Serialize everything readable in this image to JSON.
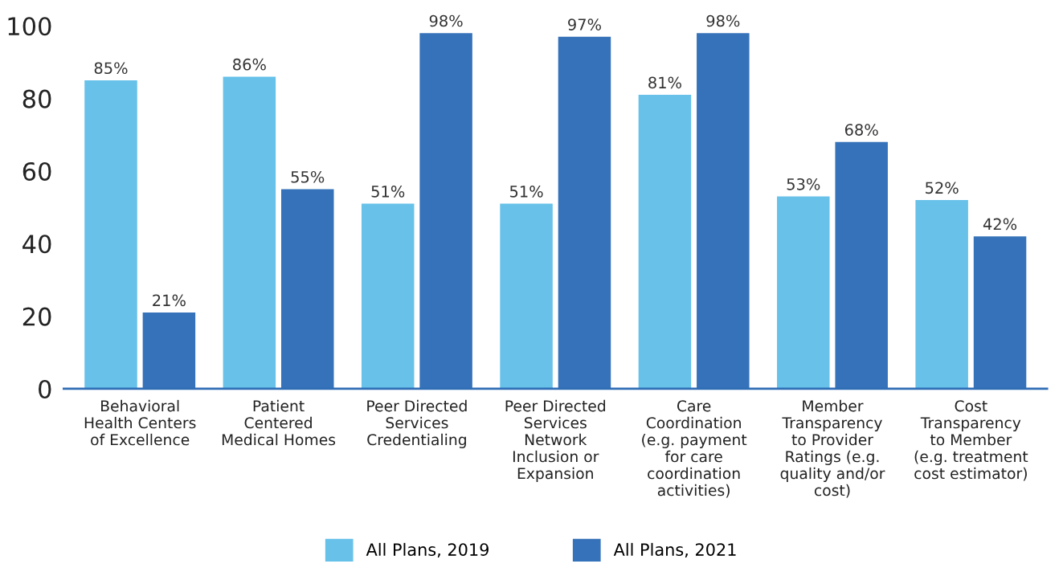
{
  "chart_data": {
    "type": "bar",
    "categories": [
      "Behavioral\nHealth Centers\nof Excellence",
      "Patient\nCentered\nMedical Homes",
      "Peer Directed\nServices\nCredentialing",
      "Peer Directed\nServices\nNetwork\nInclusion or\nExpansion",
      "Care\nCoordination\n(e.g. payment\nfor care\ncoordination\nactivities)",
      "Member\nTransparency\nto Provider\nRatings (e.g.\nquality and/or\ncost)",
      "Cost\nTransparency\nto Member\n(e.g. treatment\ncost estimator)"
    ],
    "series": [
      {
        "name": "All Plans, 2019",
        "color": "#67c1e9",
        "values": [
          85,
          86,
          51,
          51,
          81,
          53,
          52
        ],
        "value_labels": [
          "85%",
          "86%",
          "51%",
          "51%",
          "81%",
          "53%",
          "52%"
        ]
      },
      {
        "name": "All Plans, 2021",
        "color": "#3572b9",
        "values": [
          21,
          55,
          98,
          97,
          98,
          68,
          42
        ],
        "value_labels": [
          "21%",
          "55%",
          "98%",
          "97%",
          "98%",
          "68%",
          "42%"
        ]
      }
    ],
    "ylim": [
      0,
      100
    ],
    "yticks": [
      0,
      20,
      40,
      60,
      80,
      100
    ],
    "grid": false,
    "legend": "bottom"
  }
}
